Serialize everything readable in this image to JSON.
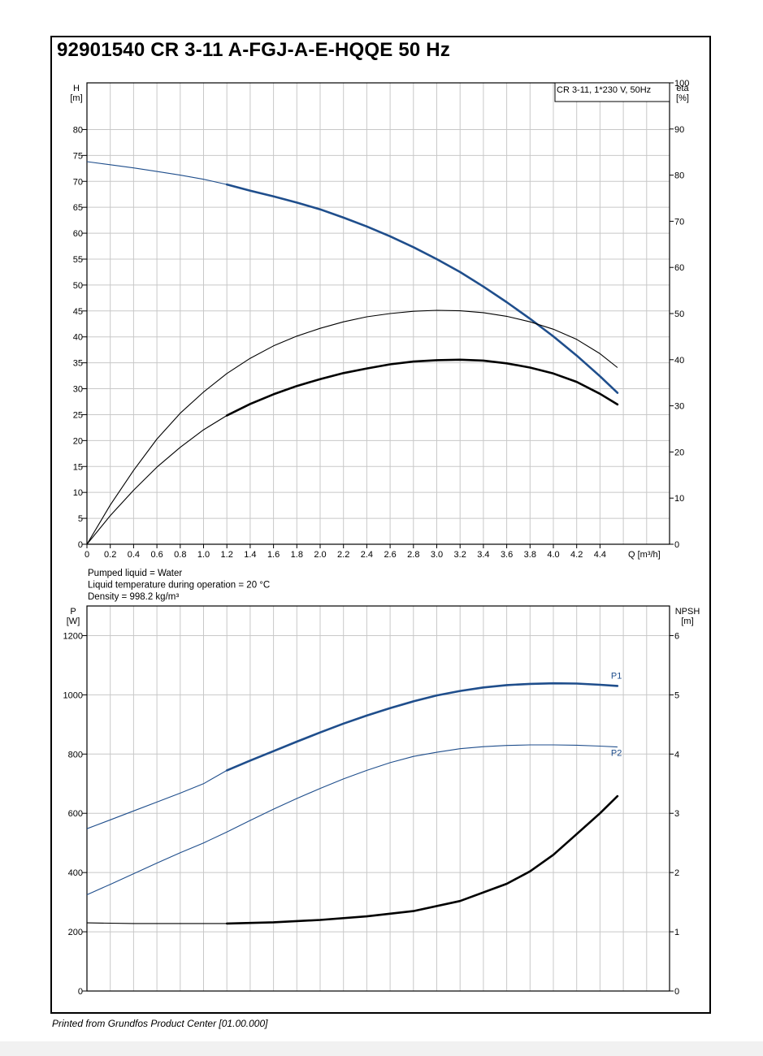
{
  "document": {
    "title": "92901540 CR 3-11 A-FGJ-A-E-HQQE 50 Hz",
    "footer": "Printed from Grundfos Product Center [01.00.000]",
    "info_lines": [
      "Pumped liquid = Water",
      "Liquid temperature during operation = 20 °C",
      "Density = 998.2 kg/m³"
    ]
  },
  "colors": {
    "curve_blue": "#1f4e8c",
    "curve_black": "#000000",
    "grid": "#c8c8c8"
  },
  "chart_data": [
    {
      "type": "line",
      "legend_box": "CR 3-11, 1*230 V, 50Hz",
      "legend_placement": "top-right",
      "grid": true,
      "x_axis": {
        "label": "Q [m³/h]",
        "range": [
          0,
          5.0
        ],
        "ticks": [
          0,
          0.2,
          0.4,
          0.6,
          0.8,
          1.0,
          1.2,
          1.4,
          1.6,
          1.8,
          2.0,
          2.2,
          2.4,
          2.6,
          2.8,
          3.0,
          3.2,
          3.4,
          3.6,
          3.8,
          4.0,
          4.2,
          4.4
        ],
        "tick_labels": [
          "0",
          "0.2",
          "0.4",
          "0.6",
          "0.8",
          "1.0",
          "1.2",
          "1.4",
          "1.6",
          "1.8",
          "2.0",
          "2.2",
          "2.4",
          "2.6",
          "2.8",
          "3.0",
          "3.2",
          "3.4",
          "3.6",
          "3.8",
          "4.0",
          "4.2",
          "4.4"
        ]
      },
      "y_axis_left": {
        "label": "H",
        "unit": "[m]",
        "range": [
          0,
          89
        ],
        "ticks": [
          0,
          5,
          10,
          15,
          20,
          25,
          30,
          35,
          40,
          45,
          50,
          55,
          60,
          65,
          70,
          75,
          80
        ],
        "tick_labels": [
          "0",
          "5",
          "10",
          "15",
          "20",
          "25",
          "30",
          "35",
          "40",
          "45",
          "50",
          "55",
          "60",
          "65",
          "70",
          "75",
          "80"
        ]
      },
      "y_axis_right": {
        "label": "eta",
        "unit": "[%]",
        "range": [
          0,
          100
        ],
        "ticks": [
          0,
          10,
          20,
          30,
          40,
          50,
          60,
          70,
          80,
          90,
          100
        ],
        "tick_labels": [
          "0",
          "10",
          "20",
          "30",
          "40",
          "50",
          "60",
          "70",
          "80",
          "90",
          "100"
        ]
      },
      "series": [
        {
          "axis": "left",
          "color": "#1f4e8c",
          "thin_until": 1.2,
          "x": [
            0,
            0.2,
            0.4,
            0.6,
            0.8,
            1.0,
            1.2,
            1.4,
            1.6,
            1.8,
            2.0,
            2.2,
            2.4,
            2.6,
            2.8,
            3.0,
            3.2,
            3.4,
            3.6,
            3.8,
            4.0,
            4.2,
            4.4,
            4.55
          ],
          "y": [
            73.8,
            73.2,
            72.6,
            71.9,
            71.2,
            70.4,
            69.4,
            68.2,
            67.1,
            65.9,
            64.6,
            63.0,
            61.3,
            59.4,
            57.3,
            55.0,
            52.5,
            49.7,
            46.7,
            43.5,
            40.1,
            36.4,
            32.4,
            29.2
          ]
        },
        {
          "axis": "right",
          "color": "#000000",
          "thin_until": 4.55,
          "x": [
            0,
            0.2,
            0.4,
            0.6,
            0.8,
            1.0,
            1.2,
            1.4,
            1.6,
            1.8,
            2.0,
            2.2,
            2.4,
            2.6,
            2.8,
            3.0,
            3.2,
            3.4,
            3.6,
            3.8,
            4.0,
            4.2,
            4.4,
            4.55
          ],
          "y": [
            0,
            8.5,
            16.0,
            22.8,
            28.4,
            33.0,
            37.0,
            40.3,
            43.0,
            45.1,
            46.8,
            48.2,
            49.3,
            50.0,
            50.5,
            50.7,
            50.6,
            50.2,
            49.4,
            48.2,
            46.6,
            44.4,
            41.3,
            38.3
          ]
        },
        {
          "axis": "right",
          "color": "#000000",
          "thin_until": 1.2,
          "x": [
            0,
            0.2,
            0.4,
            0.6,
            0.8,
            1.0,
            1.2,
            1.4,
            1.6,
            1.8,
            2.0,
            2.2,
            2.4,
            2.6,
            2.8,
            3.0,
            3.2,
            3.4,
            3.6,
            3.8,
            4.0,
            4.2,
            4.4,
            4.55
          ],
          "y": [
            0,
            6.2,
            11.7,
            16.7,
            21.0,
            24.8,
            27.9,
            30.4,
            32.5,
            34.3,
            35.8,
            37.1,
            38.1,
            39.0,
            39.6,
            39.9,
            40.0,
            39.8,
            39.2,
            38.3,
            37.0,
            35.2,
            32.6,
            30.3
          ]
        }
      ]
    },
    {
      "type": "line",
      "grid": true,
      "x_axis": {
        "range": [
          0,
          5.0
        ]
      },
      "y_axis_left": {
        "label": "P",
        "unit": "[W]",
        "range": [
          0,
          1300
        ],
        "ticks": [
          0,
          200,
          400,
          600,
          800,
          1000,
          1200
        ],
        "tick_labels": [
          "0",
          "200",
          "400",
          "600",
          "800",
          "1000",
          "1200"
        ]
      },
      "y_axis_right": {
        "label": "NPSH",
        "unit": "[m]",
        "range": [
          0,
          6.5
        ],
        "ticks": [
          0,
          1,
          2,
          3,
          4,
          5,
          6
        ],
        "tick_labels": [
          "0",
          "1",
          "2",
          "3",
          "4",
          "5",
          "6"
        ]
      },
      "series": [
        {
          "name": "P1",
          "axis": "left",
          "color": "#1f4e8c",
          "thin_until": 1.2,
          "x": [
            0,
            0.2,
            0.4,
            0.6,
            0.8,
            1.0,
            1.2,
            1.4,
            1.6,
            1.8,
            2.0,
            2.2,
            2.4,
            2.6,
            2.8,
            3.0,
            3.2,
            3.4,
            3.6,
            3.8,
            4.0,
            4.2,
            4.4,
            4.55
          ],
          "y": [
            548,
            578,
            608,
            638,
            668,
            700,
            745,
            778,
            810,
            842,
            873,
            903,
            930,
            955,
            978,
            998,
            1013,
            1025,
            1033,
            1037,
            1039,
            1038,
            1034,
            1030
          ]
        },
        {
          "name": "P2",
          "axis": "left",
          "color": "#1f4e8c",
          "thin_until": 4.55,
          "x": [
            0,
            0.2,
            0.4,
            0.6,
            0.8,
            1.0,
            1.2,
            1.4,
            1.6,
            1.8,
            2.0,
            2.2,
            2.4,
            2.6,
            2.8,
            3.0,
            3.2,
            3.4,
            3.6,
            3.8,
            4.0,
            4.2,
            4.4,
            4.55
          ],
          "y": [
            325,
            360,
            396,
            432,
            467,
            500,
            537,
            576,
            614,
            650,
            684,
            716,
            745,
            771,
            792,
            806,
            818,
            825,
            829,
            831,
            831,
            830,
            827,
            824
          ]
        },
        {
          "axis": "right",
          "color": "#000000",
          "thin_until": 1.2,
          "x": [
            0,
            0.4,
            0.8,
            1.2,
            1.6,
            2.0,
            2.4,
            2.8,
            3.2,
            3.6,
            3.8,
            4.0,
            4.2,
            4.4,
            4.55
          ],
          "y": [
            1.15,
            1.14,
            1.14,
            1.14,
            1.16,
            1.2,
            1.26,
            1.35,
            1.52,
            1.81,
            2.02,
            2.3,
            2.65,
            3.0,
            3.29
          ]
        }
      ]
    }
  ]
}
